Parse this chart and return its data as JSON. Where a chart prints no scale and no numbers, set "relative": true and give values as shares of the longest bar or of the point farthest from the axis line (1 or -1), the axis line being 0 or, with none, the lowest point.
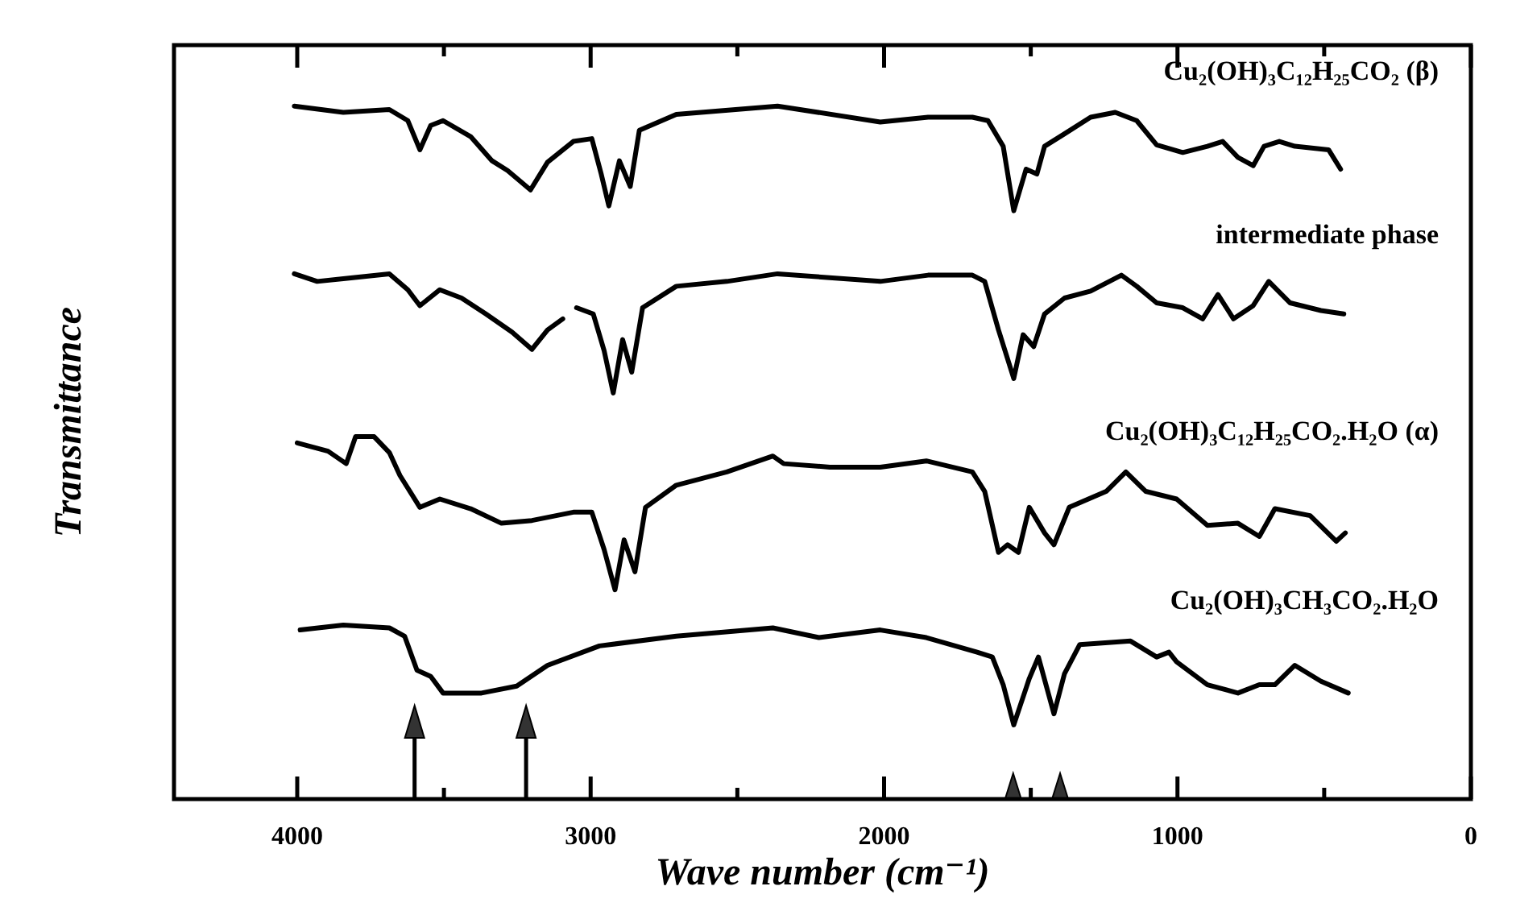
{
  "chart_data": {
    "type": "line",
    "relative": true,
    "xlabel": "Wave number (cm⁻¹)",
    "ylabel": "Transmittance",
    "xlim": [
      4420,
      0
    ],
    "xticks": [
      4000,
      {
        "value": 3500,
        "label": null
      },
      3000,
      {
        "value": 2500,
        "label": null
      },
      2000,
      {
        "value": 1500,
        "label": null
      },
      1000,
      {
        "value": 500,
        "label": null
      },
      0
    ],
    "marker": "none",
    "line_style": "solid",
    "series": [
      {
        "name": "Cu₂(OH)₃C₁₂H₂₅CO₂ (β)",
        "color": "#000000",
        "x": [
          4010,
          3843,
          3686,
          3623,
          3582,
          3545,
          3503,
          3409,
          3336,
          3283,
          3205,
          3147,
          3059,
          2996,
          2964,
          2938,
          2902,
          2865,
          2834,
          2708,
          2363,
          2013,
          1850,
          1699,
          1646,
          1594,
          1558,
          1516,
          1479,
          1453,
          1385,
          1296,
          1212,
          1139,
          1071,
          982,
          898,
          846,
          794,
          742,
          705,
          653,
          600,
          485,
          444
        ],
        "values": [
          1.0,
          0.991,
          0.995,
          0.979,
          0.937,
          0.972,
          0.979,
          0.956,
          0.921,
          0.907,
          0.879,
          0.919,
          0.949,
          0.953,
          0.902,
          0.856,
          0.921,
          0.884,
          0.965,
          0.988,
          1.0,
          0.977,
          0.984,
          0.984,
          0.979,
          0.942,
          0.849,
          0.909,
          0.902,
          0.942,
          0.96,
          0.984,
          0.991,
          0.979,
          0.944,
          0.933,
          0.942,
          0.949,
          0.926,
          0.914,
          0.942,
          0.949,
          0.942,
          0.937,
          0.909
        ]
      },
      {
        "name": "intermediate phase",
        "color": "#000000",
        "x": [
          4010,
          3932,
          3843,
          3686,
          3623,
          3582,
          3514,
          3440,
          3357,
          3268,
          3200,
          3147,
          3095,
          3070,
          3048,
          2991,
          2954,
          2923,
          2891,
          2860,
          2823,
          2708,
          2536,
          2363,
          2013,
          1850,
          1699,
          1657,
          1610,
          1558,
          1526,
          1490,
          1453,
          1385,
          1296,
          1191,
          1139,
          1071,
          982,
          914,
          862,
          809,
          742,
          689,
          616,
          511,
          433
        ],
        "values": [
          0.758,
          0.747,
          0.751,
          0.758,
          0.735,
          0.712,
          0.735,
          0.723,
          0.7,
          0.674,
          0.649,
          0.677,
          0.693,
          null,
          0.709,
          0.7,
          0.647,
          0.586,
          0.663,
          0.616,
          0.709,
          0.74,
          0.747,
          0.758,
          0.747,
          0.756,
          0.756,
          0.747,
          0.677,
          0.607,
          0.67,
          0.653,
          0.7,
          0.723,
          0.733,
          0.756,
          0.74,
          0.716,
          0.709,
          0.693,
          0.728,
          0.693,
          0.712,
          0.747,
          0.716,
          0.705,
          0.7
        ]
      },
      {
        "name": "Cu₂(OH)₃C₁₂H₂₅CO₂.H₂O  (α)",
        "color": "#000000",
        "x": [
          4000,
          3895,
          3833,
          3801,
          3738,
          3686,
          3650,
          3582,
          3514,
          3409,
          3304,
          3200,
          3059,
          2996,
          2954,
          2917,
          2886,
          2849,
          2813,
          2708,
          2536,
          2379,
          2342,
          2185,
          2013,
          1856,
          1699,
          1657,
          1610,
          1579,
          1542,
          1505,
          1453,
          1421,
          1369,
          1243,
          1176,
          1108,
          1003,
          898,
          794,
          721,
          668,
          548,
          459,
          428
        ],
        "values": [
          0.514,
          0.502,
          0.484,
          0.523,
          0.523,
          0.5,
          0.467,
          0.421,
          0.433,
          0.419,
          0.398,
          0.402,
          0.414,
          0.414,
          0.36,
          0.302,
          0.374,
          0.328,
          0.421,
          0.453,
          0.472,
          0.495,
          0.484,
          0.479,
          0.479,
          0.488,
          0.472,
          0.444,
          0.356,
          0.367,
          0.356,
          0.421,
          0.384,
          0.367,
          0.421,
          0.444,
          0.472,
          0.444,
          0.433,
          0.395,
          0.398,
          0.379,
          0.419,
          0.409,
          0.372,
          0.384
        ]
      },
      {
        "name": "Cu₂(OH)₃CH₃CO₂.H₂O",
        "color": "#000000",
        "x": [
          3990,
          3843,
          3686,
          3634,
          3592,
          3545,
          3503,
          3372,
          3252,
          3147,
          2970,
          2708,
          2379,
          2222,
          2013,
          1856,
          1683,
          1631,
          1594,
          1558,
          1505,
          1474,
          1421,
          1385,
          1333,
          1160,
          1071,
          1029,
          1003,
          898,
          794,
          721,
          668,
          600,
          511,
          418
        ],
        "values": [
          0.244,
          0.251,
          0.247,
          0.235,
          0.186,
          0.177,
          0.153,
          0.153,
          0.163,
          0.193,
          0.221,
          0.235,
          0.247,
          0.233,
          0.244,
          0.233,
          0.212,
          0.205,
          0.165,
          0.107,
          0.174,
          0.205,
          0.123,
          0.181,
          0.223,
          0.228,
          0.205,
          0.212,
          0.198,
          0.165,
          0.153,
          0.165,
          0.165,
          0.193,
          0.17,
          0.153
        ]
      }
    ]
  }
}
